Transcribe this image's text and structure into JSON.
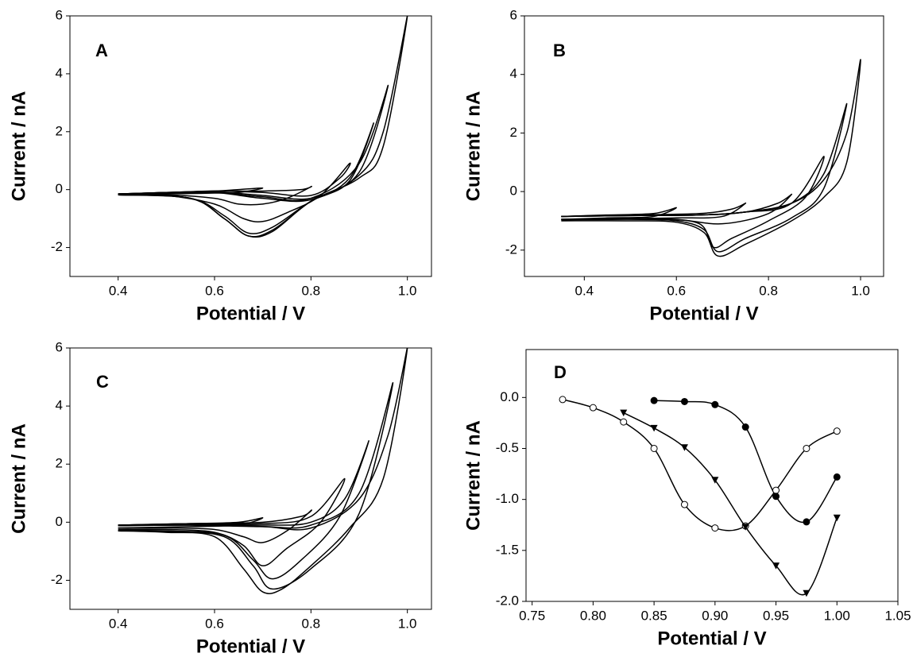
{
  "chart_data": [
    {
      "type": "line",
      "label": "A",
      "xlabel": "Potential / V",
      "ylabel": "Current / nA",
      "xlim": [
        0.3,
        1.05
      ],
      "ylim": [
        -3,
        6
      ],
      "xticks": [
        0.4,
        0.6,
        0.8,
        {
          "value": 1,
          "label": "1.0"
        }
      ],
      "yticks": [
        -2,
        0,
        2,
        4,
        6
      ],
      "series": [
        {
          "color": "#000000",
          "x": [
            0.4,
            0.5,
            0.6,
            0.65,
            0.7,
            0.65,
            0.6,
            0.5,
            0.4
          ],
          "values": [
            -0.15,
            -0.1,
            -0.05,
            0,
            0.05,
            -0.1,
            -0.12,
            -0.15,
            -0.18
          ]
        },
        {
          "color": "#000000",
          "x": [
            0.4,
            0.5,
            0.6,
            0.7,
            0.78,
            0.8,
            0.75,
            0.7,
            0.65,
            0.6,
            0.5,
            0.4
          ],
          "values": [
            -0.15,
            -0.1,
            -0.05,
            -0.05,
            0,
            0.1,
            -0.3,
            -0.5,
            -0.5,
            -0.3,
            -0.18,
            -0.18
          ]
        },
        {
          "color": "#000000",
          "x": [
            0.4,
            0.5,
            0.6,
            0.7,
            0.8,
            0.86,
            0.88,
            0.82,
            0.75,
            0.7,
            0.66,
            0.6,
            0.5,
            0.4
          ],
          "values": [
            -0.15,
            -0.1,
            -0.05,
            -0.1,
            -0.2,
            0.4,
            0.9,
            -0.2,
            -0.8,
            -1.1,
            -1.0,
            -0.5,
            -0.2,
            -0.18
          ]
        },
        {
          "color": "#000000",
          "x": [
            0.4,
            0.5,
            0.6,
            0.7,
            0.8,
            0.88,
            0.93,
            0.88,
            0.8,
            0.72,
            0.67,
            0.62,
            0.55,
            0.4
          ],
          "values": [
            -0.15,
            -0.1,
            -0.08,
            -0.2,
            -0.3,
            0.4,
            2.3,
            0.3,
            -0.4,
            -1.3,
            -1.5,
            -0.9,
            -0.3,
            -0.18
          ]
        },
        {
          "color": "#000000",
          "x": [
            0.4,
            0.5,
            0.6,
            0.7,
            0.8,
            0.9,
            0.96,
            0.9,
            0.8,
            0.72,
            0.67,
            0.62,
            0.55,
            0.4
          ],
          "values": [
            -0.15,
            -0.12,
            -0.1,
            -0.25,
            -0.3,
            0.9,
            3.6,
            0.6,
            -0.4,
            -1.4,
            -1.6,
            -1.0,
            -0.3,
            -0.18
          ]
        },
        {
          "color": "#000000",
          "x": [
            0.4,
            0.5,
            0.6,
            0.7,
            0.8,
            0.9,
            0.95,
            1.0,
            0.95,
            0.9,
            0.8,
            0.72,
            0.67,
            0.62,
            0.55,
            0.4
          ],
          "values": [
            -0.15,
            -0.12,
            -0.1,
            -0.3,
            -0.35,
            0.5,
            2.0,
            6,
            1.5,
            0.4,
            -0.4,
            -1.45,
            -1.6,
            -1.0,
            -0.3,
            -0.18
          ]
        }
      ]
    },
    {
      "type": "line",
      "label": "B",
      "xlabel": "Potential / V",
      "ylabel": "Current / nA",
      "xlim": [
        0.27,
        1.05
      ],
      "ylim": [
        -2.9,
        6
      ],
      "xticks": [
        0.4,
        0.6,
        0.8,
        {
          "value": 1,
          "label": "1.0"
        }
      ],
      "yticks": [
        -2,
        0,
        2,
        4,
        6
      ],
      "series": [
        {
          "color": "#000000",
          "x": [
            0.35,
            0.45,
            0.55,
            0.6,
            0.55,
            0.45,
            0.35
          ],
          "values": [
            -0.85,
            -0.8,
            -0.75,
            -0.55,
            -0.85,
            -0.9,
            -0.95
          ]
        },
        {
          "color": "#000000",
          "x": [
            0.35,
            0.5,
            0.65,
            0.72,
            0.75,
            0.7,
            0.6,
            0.5,
            0.35
          ],
          "values": [
            -0.85,
            -0.8,
            -0.75,
            -0.6,
            -0.4,
            -0.85,
            -0.9,
            -0.92,
            -0.95
          ]
        },
        {
          "color": "#000000",
          "x": [
            0.35,
            0.5,
            0.65,
            0.75,
            0.82,
            0.85,
            0.8,
            0.7,
            0.6,
            0.5,
            0.35
          ],
          "values": [
            -0.85,
            -0.8,
            -0.8,
            -0.7,
            -0.4,
            -0.1,
            -0.75,
            -1.1,
            -0.95,
            -0.93,
            -0.95
          ]
        },
        {
          "color": "#000000",
          "x": [
            0.35,
            0.5,
            0.65,
            0.75,
            0.85,
            0.92,
            0.88,
            0.8,
            0.72,
            0.68,
            0.65,
            0.55,
            0.35
          ],
          "values": [
            -0.85,
            -0.82,
            -0.8,
            -0.7,
            -0.4,
            1.2,
            -0.2,
            -1.0,
            -1.6,
            -1.9,
            -1.1,
            -0.95,
            -0.95
          ]
        },
        {
          "color": "#000000",
          "x": [
            0.35,
            0.5,
            0.65,
            0.75,
            0.85,
            0.92,
            0.97,
            0.92,
            0.85,
            0.75,
            0.69,
            0.66,
            0.6,
            0.5,
            0.35
          ],
          "values": [
            -0.85,
            -0.82,
            -0.8,
            -0.7,
            -0.4,
            0.6,
            3.0,
            0.1,
            -0.9,
            -1.6,
            -2.05,
            -1.3,
            -1.0,
            -0.95,
            -0.97
          ]
        },
        {
          "color": "#000000",
          "x": [
            0.35,
            0.5,
            0.65,
            0.75,
            0.85,
            0.92,
            0.97,
            1.0,
            0.97,
            0.92,
            0.85,
            0.75,
            0.69,
            0.66,
            0.6,
            0.5,
            0.35
          ],
          "values": [
            -0.85,
            -0.82,
            -0.8,
            -0.7,
            -0.4,
            0.4,
            2.0,
            4.5,
            1.0,
            -0.2,
            -1.0,
            -1.8,
            -2.2,
            -1.4,
            -1.05,
            -1.0,
            -1.0
          ]
        }
      ]
    },
    {
      "type": "line",
      "label": "C",
      "xlabel": "Potential / V",
      "ylabel": "Current / nA",
      "xlim": [
        0.3,
        1.05
      ],
      "ylim": [
        -3,
        6
      ],
      "xticks": [
        0.4,
        0.6,
        0.8,
        {
          "value": 1,
          "label": "1.0"
        }
      ],
      "yticks": [
        -2,
        0,
        2,
        4,
        6
      ],
      "series": [
        {
          "color": "#000000",
          "x": [
            0.4,
            0.55,
            0.65,
            0.7,
            0.65,
            0.55,
            0.4
          ],
          "values": [
            -0.1,
            -0.05,
            0,
            0.15,
            -0.1,
            -0.15,
            -0.2
          ]
        },
        {
          "color": "#000000",
          "x": [
            0.4,
            0.55,
            0.7,
            0.78,
            0.8,
            0.75,
            0.7,
            0.66,
            0.6,
            0.5,
            0.4
          ],
          "values": [
            -0.1,
            -0.05,
            0,
            0.2,
            0.4,
            -0.3,
            -0.7,
            -0.5,
            -0.25,
            -0.2,
            -0.2
          ]
        },
        {
          "color": "#000000",
          "x": [
            0.4,
            0.55,
            0.7,
            0.8,
            0.87,
            0.82,
            0.75,
            0.7,
            0.66,
            0.6,
            0.5,
            0.4
          ],
          "values": [
            -0.1,
            -0.05,
            -0.05,
            0.2,
            1.5,
            0,
            -0.9,
            -1.5,
            -0.8,
            -0.35,
            -0.25,
            -0.25
          ]
        },
        {
          "color": "#000000",
          "x": [
            0.4,
            0.55,
            0.7,
            0.8,
            0.87,
            0.92,
            0.86,
            0.78,
            0.72,
            0.68,
            0.62,
            0.5,
            0.4
          ],
          "values": [
            -0.1,
            -0.08,
            -0.1,
            0,
            0.8,
            2.8,
            0.2,
            -1.3,
            -1.95,
            -1.3,
            -0.45,
            -0.3,
            -0.28
          ]
        },
        {
          "color": "#000000",
          "x": [
            0.4,
            0.55,
            0.7,
            0.8,
            0.9,
            0.97,
            0.9,
            0.8,
            0.72,
            0.68,
            0.62,
            0.5,
            0.4
          ],
          "values": [
            -0.12,
            -0.1,
            -0.15,
            -0.1,
            1.0,
            4.8,
            0.3,
            -1.6,
            -2.3,
            -1.5,
            -0.5,
            -0.32,
            -0.3
          ]
        },
        {
          "color": "#000000",
          "x": [
            0.4,
            0.55,
            0.7,
            0.8,
            0.9,
            0.96,
            1.0,
            0.95,
            0.88,
            0.8,
            0.74,
            0.7,
            0.66,
            0.6,
            0.5,
            0.4
          ],
          "values": [
            -0.12,
            -0.1,
            -0.15,
            -0.2,
            0.8,
            3.0,
            6,
            1.5,
            -0.2,
            -1.5,
            -2.3,
            -2.4,
            -1.6,
            -0.5,
            -0.35,
            -0.3
          ]
        }
      ]
    },
    {
      "type": "line",
      "label": "D",
      "xlabel": "Potential / V",
      "ylabel": "Current / nA",
      "xlim": [
        0.745,
        1.05
      ],
      "ylim": [
        -2.0,
        0.47
      ],
      "xticks": [
        0.75,
        {
          "value": 0.8,
          "label": "0.80"
        },
        0.85,
        {
          "value": 0.9,
          "label": "0.90"
        },
        0.95,
        {
          "value": 1,
          "label": "1.00"
        },
        1.05
      ],
      "yticks": [
        {
          "value": 0,
          "label": "0.0"
        },
        -0.5,
        {
          "value": -1,
          "label": "-1.0"
        },
        -1.5,
        {
          "value": -2,
          "label": "-2.0"
        }
      ],
      "series": [
        {
          "color": "#000000",
          "marker": "circle-open",
          "x": [
            0.775,
            0.8,
            0.825,
            0.85,
            0.875,
            0.9,
            0.925,
            0.95,
            0.975,
            1.0
          ],
          "values": [
            -0.02,
            -0.1,
            -0.24,
            -0.5,
            -1.05,
            -1.28,
            -1.26,
            -0.91,
            -0.5,
            -0.33
          ]
        },
        {
          "color": "#000000",
          "marker": "circle-filled",
          "x": [
            0.85,
            0.875,
            0.9,
            0.925,
            0.95,
            0.975,
            1.0
          ],
          "values": [
            -0.03,
            -0.04,
            -0.07,
            -0.29,
            -0.97,
            -1.22,
            -0.78
          ]
        },
        {
          "color": "#000000",
          "marker": "triangle-down",
          "x": [
            0.825,
            0.85,
            0.875,
            0.9,
            0.925,
            0.95,
            0.975,
            1.0
          ],
          "values": [
            -0.15,
            -0.3,
            -0.49,
            -0.81,
            -1.27,
            -1.65,
            -1.92,
            -1.18
          ]
        }
      ]
    }
  ]
}
